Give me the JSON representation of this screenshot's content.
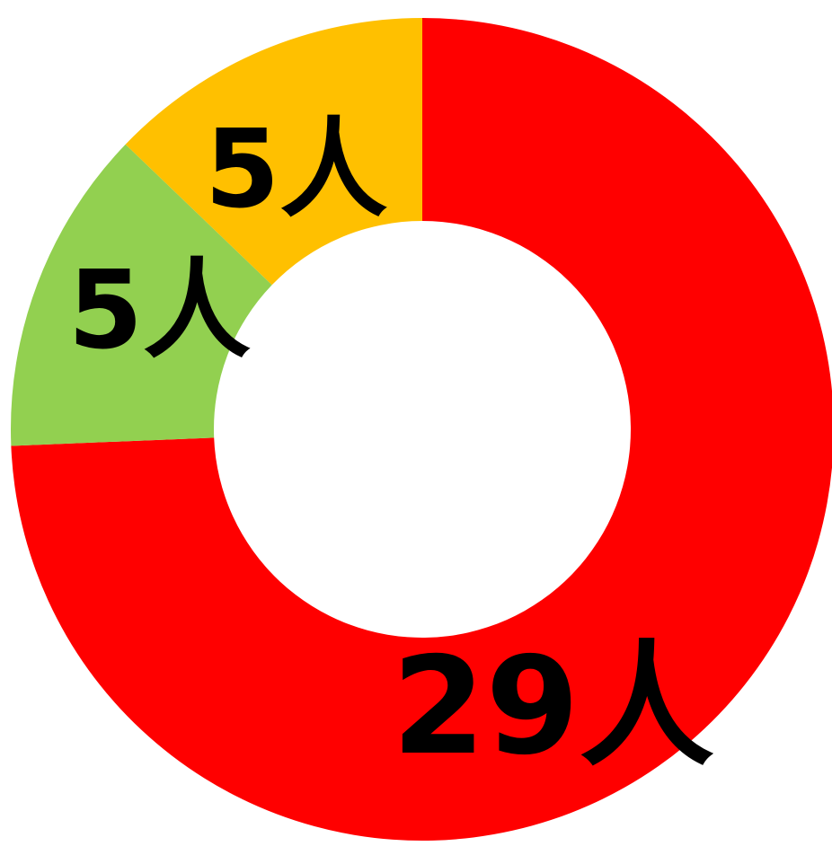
{
  "chart_data": {
    "type": "pie",
    "variant": "donut",
    "start": "top",
    "direction": "clockwise",
    "slices": [
      {
        "value": 29,
        "label": "29人",
        "color": "#ff0000"
      },
      {
        "value": 5,
        "label": "5人",
        "color": "#92d050"
      },
      {
        "value": 5,
        "label": "5人",
        "color": "#ffc000"
      }
    ],
    "title": "",
    "legend": "none"
  }
}
